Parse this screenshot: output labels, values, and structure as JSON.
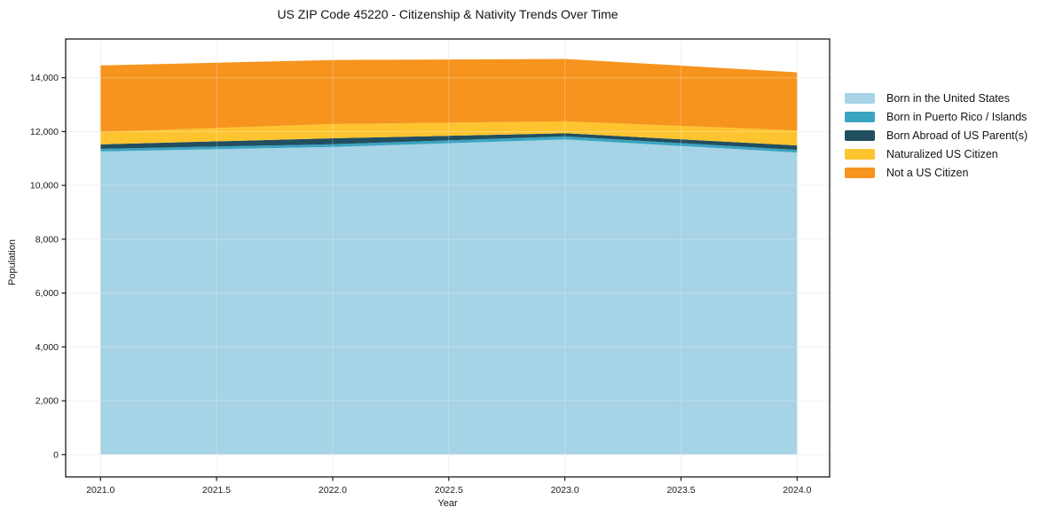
{
  "chart_data": {
    "type": "area",
    "stacked": true,
    "title": "US ZIP Code 45220 - Citizenship & Nativity Trends Over Time",
    "xlabel": "Year",
    "ylabel": "Population",
    "x": [
      2021,
      2022,
      2023,
      2024
    ],
    "series": [
      {
        "name": "Born in the United States",
        "color": "#a6d3e6",
        "values": [
          11260,
          11430,
          11710,
          11220
        ]
      },
      {
        "name": "Born in Puerto Rico / Islands",
        "color": "#3aa5c1",
        "values": [
          100,
          100,
          110,
          100
        ]
      },
      {
        "name": "Born Abroad of US Parent(s)",
        "color": "#214f60",
        "values": [
          165,
          220,
          120,
          165
        ]
      },
      {
        "name": "Naturalized US Citizen",
        "color": "#fdc42f",
        "values": [
          460,
          530,
          440,
          560
        ]
      },
      {
        "name": "Not a US Citizen",
        "color": "#f6941e",
        "values": [
          2475,
          2380,
          2320,
          2155
        ]
      }
    ],
    "totals": [
      14460,
      14660,
      14700,
      14200
    ],
    "xlim": [
      2020.85,
      2024.14
    ],
    "ylim": [
      -830,
      15440
    ],
    "xticks": [
      2021.0,
      2021.5,
      2022.0,
      2022.5,
      2023.0,
      2023.5,
      2024.0
    ],
    "xtick_labels": [
      "2021.0",
      "2021.5",
      "2022.0",
      "2022.5",
      "2023.0",
      "2023.5",
      "2024.0"
    ],
    "yticks": [
      0,
      2000,
      4000,
      6000,
      8000,
      10000,
      12000,
      14000
    ],
    "ytick_labels": [
      "0",
      "2,000",
      "4,000",
      "6,000",
      "8,000",
      "10,000",
      "12,000",
      "14,000"
    ],
    "grid": true,
    "grid_color": "#ececec",
    "plot_border_color": "#1a1a1a",
    "background_color": "#ffffff",
    "legend_position": "right-outside"
  }
}
